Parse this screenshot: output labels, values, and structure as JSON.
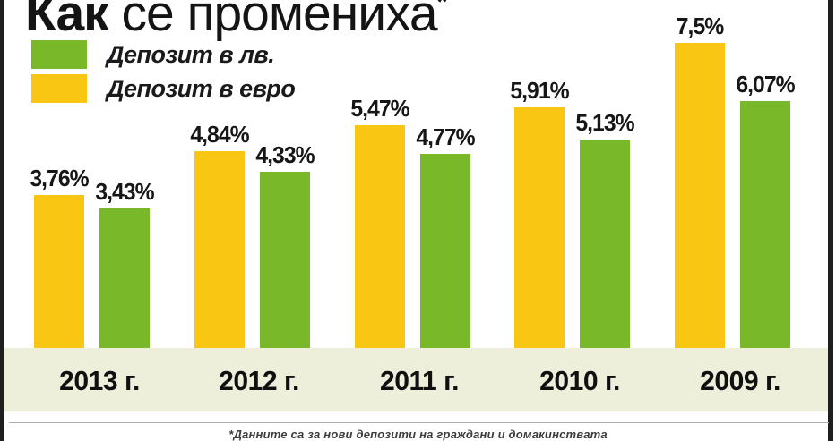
{
  "title": {
    "emphasis": "Как",
    "rest": " се промениха",
    "asterisk": "*"
  },
  "legend": [
    {
      "label": "Депозит в лв.",
      "color_key": "bgn_green"
    },
    {
      "label": "Депозит в евро",
      "color_key": "eur_yellow"
    }
  ],
  "colors": {
    "eur_yellow": "#f9c613",
    "bgn_green": "#79b829",
    "band_background": "#edefda",
    "frame_border": "#1f1f1f",
    "text": "#161616",
    "footnote_rule": "#adadad"
  },
  "footnote": "*Данните са за нови депозити на граждани и домакинствата",
  "chart_data": {
    "type": "bar",
    "categories": [
      "2013 г.",
      "2012 г.",
      "2011 г.",
      "2010 г.",
      "2009 г."
    ],
    "series": [
      {
        "name": "Депозит в евро",
        "key": "euro",
        "color": "#f9c613",
        "values": [
          3.76,
          4.84,
          5.47,
          5.91,
          7.5
        ],
        "labels": [
          "3,76%",
          "4,84%",
          "5,47%",
          "5,91%",
          "7,5%"
        ]
      },
      {
        "name": "Депозит в лв.",
        "key": "leva",
        "color": "#79b829",
        "values": [
          3.43,
          4.33,
          4.77,
          5.13,
          6.07
        ],
        "labels": [
          "3,43%",
          "4,33%",
          "4,77%",
          "5,13%",
          "6,07%"
        ]
      }
    ],
    "unit": "%",
    "ylim": [
      0,
      8.5
    ],
    "grid": false,
    "legend_position": "top-left",
    "value_labels": "above-bars",
    "axis_order_note": "years shown newest (2013) to oldest (2009), euro bar left, leva bar right"
  }
}
